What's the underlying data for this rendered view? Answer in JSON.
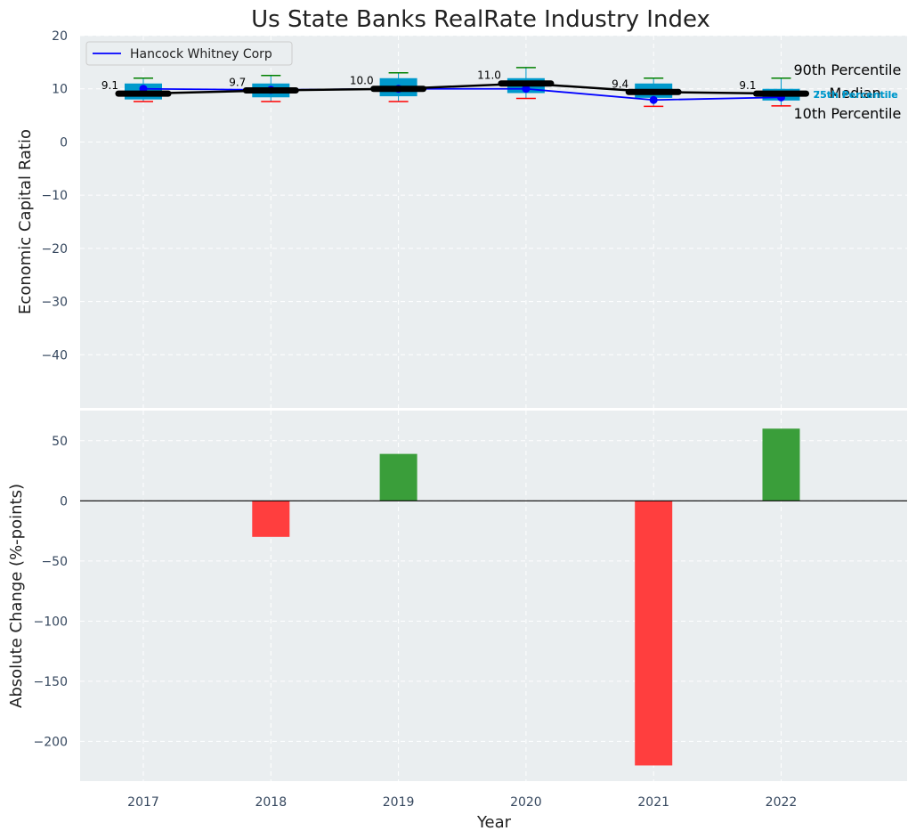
{
  "chart_data": [
    {
      "type": "box",
      "title": "Us State Banks RealRate Industry Index",
      "xlabel": "",
      "ylabel": "Economic Capital Ratio",
      "ylim": [
        -50,
        20
      ],
      "yticks": [
        20,
        10,
        0,
        -10,
        -20,
        -30,
        -40
      ],
      "categories": [
        "2017",
        "2018",
        "2019",
        "2020",
        "2021",
        "2022"
      ],
      "percentiles": {
        "p10": [
          7.6,
          7.6,
          7.6,
          8.2,
          6.7,
          6.8
        ],
        "p25": [
          8.0,
          8.4,
          8.6,
          9.2,
          8.3,
          7.8
        ],
        "median": [
          9.1,
          9.7,
          10.0,
          11.0,
          9.4,
          9.1
        ],
        "p75": [
          11.0,
          11.0,
          12.0,
          12.0,
          11.0,
          10.0
        ],
        "p90": [
          12.0,
          12.5,
          13.0,
          14.0,
          12.0,
          12.0
        ]
      },
      "median_labels": [
        "9.1",
        "9.7",
        "10.0",
        "11.0",
        "9.4",
        "9.1"
      ],
      "series": [
        {
          "name": "Hancock Whitney Corp",
          "values": [
            10.0,
            9.8,
            10.0,
            10.0,
            7.9,
            8.4
          ],
          "color": "#0000ff"
        }
      ],
      "legend": "top-left",
      "side_labels": {
        "p90": "90th Percentile",
        "median": "Median",
        "p10": "10th Percentile",
        "p75": "75th Percentile",
        "p25": "25th Percentile"
      },
      "colors": {
        "box": "#0099cc",
        "median": "#000000",
        "p90_whisker": "#008000",
        "p10_whisker": "#ff0000",
        "panel_bg": "#eaeef0"
      }
    },
    {
      "type": "bar",
      "xlabel": "Year",
      "ylabel": "Absolute Change (%-points)",
      "ylim": [
        -233,
        75
      ],
      "yticks": [
        50,
        0,
        -50,
        -100,
        -150,
        -200
      ],
      "categories": [
        "2017",
        "2018",
        "2019",
        "2020",
        "2021",
        "2022"
      ],
      "values": [
        0,
        -30,
        39,
        0,
        -220,
        60
      ],
      "colors": {
        "positive": "#3a9e3a",
        "negative": "#ff3e3e",
        "zero_line": "#000000"
      }
    }
  ]
}
